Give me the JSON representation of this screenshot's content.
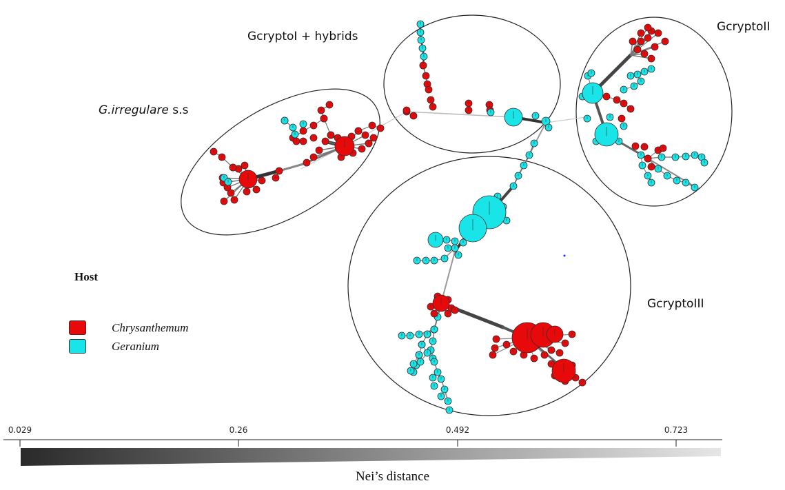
{
  "clusters": {
    "irregulare": {
      "italic": "G.irregulare",
      "plain": " s.s"
    },
    "cryptoI": {
      "label": "GcryptoI + hybrids"
    },
    "cryptoII": {
      "label": "GcryptoII"
    },
    "cryptoIII": {
      "label": "GcryptoIII"
    }
  },
  "legend": {
    "title": "Host",
    "items": [
      {
        "label": "Chrysanthemum",
        "color": "#e8090b"
      },
      {
        "label": "Geranium",
        "color": "#19e5e8"
      }
    ]
  },
  "scale": {
    "ticks": [
      "0.029",
      "0.26",
      "0.492",
      "0.723"
    ],
    "title": "Nei’s distance",
    "gradient_from": "#2a2a2a",
    "gradient_to": "#e6e6e6"
  },
  "colors": {
    "chrysanthemum": "#e8090b",
    "geranium": "#19e5e8",
    "node_outline": "#3a2a2a"
  }
}
